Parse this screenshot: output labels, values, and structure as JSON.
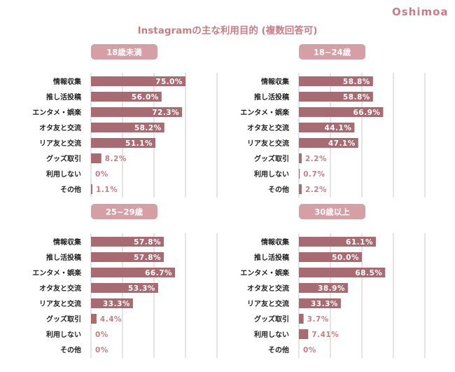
{
  "brand": "Oshimoa",
  "title": "Instagramの主な利用目的 (複数回答可)",
  "colors": {
    "bar": "#a86b72",
    "accent": "#c97c86",
    "header_bg": "#d4a0a5",
    "grid": "#c8c8c8",
    "label": "#222222"
  },
  "chart_data": [
    {
      "type": "bar",
      "title": "18歳未満",
      "categories": [
        "情報収集",
        "推し活投稿",
        "エンタメ・娯楽",
        "オタ友と交流",
        "リア友と交流",
        "グッズ取引",
        "利用しない",
        "その他"
      ],
      "values": [
        75.0,
        56.0,
        72.3,
        58.2,
        51.1,
        8.2,
        0,
        1.1
      ],
      "value_labels": [
        "75.0%",
        "56.0%",
        "72.3%",
        "58.2%",
        "51.1%",
        "8.2%",
        "0%",
        "1.1%"
      ],
      "xlim": [
        0,
        100
      ]
    },
    {
      "type": "bar",
      "title": "18~24歳",
      "categories": [
        "情報収集",
        "推し活投稿",
        "エンタメ・娯楽",
        "オタ友と交流",
        "リア友と交流",
        "グッズ取引",
        "利用しない",
        "その他"
      ],
      "values": [
        58.8,
        58.8,
        66.9,
        44.1,
        47.1,
        2.2,
        0.7,
        2.2
      ],
      "value_labels": [
        "58.8%",
        "58.8%",
        "66.9%",
        "44.1%",
        "47.1%",
        "2.2%",
        "0.7%",
        "2.2%"
      ],
      "xlim": [
        0,
        100
      ]
    },
    {
      "type": "bar",
      "title": "25~29歳",
      "categories": [
        "情報収集",
        "推し活投稿",
        "エンタメ・娯楽",
        "オタ友と交流",
        "リア友と交流",
        "グッズ取引",
        "利用しない",
        "その他"
      ],
      "values": [
        57.8,
        57.8,
        66.7,
        53.3,
        33.3,
        4.4,
        0,
        0
      ],
      "value_labels": [
        "57.8%",
        "57.8%",
        "66.7%",
        "53.3%",
        "33.3%",
        "4.4%",
        "0%",
        "0%"
      ],
      "xlim": [
        0,
        100
      ]
    },
    {
      "type": "bar",
      "title": "30歳以上",
      "categories": [
        "情報収集",
        "推し活投稿",
        "エンタメ・娯楽",
        "オタ友と交流",
        "リア友と交流",
        "グッズ取引",
        "利用しない",
        "その他"
      ],
      "values": [
        61.1,
        50.0,
        68.5,
        38.9,
        33.3,
        3.7,
        7.41,
        0
      ],
      "value_labels": [
        "61.1%",
        "50.0%",
        "68.5%",
        "38.9%",
        "33.3%",
        "3.7%",
        "7.41%",
        "0%"
      ],
      "xlim": [
        0,
        100
      ]
    }
  ]
}
